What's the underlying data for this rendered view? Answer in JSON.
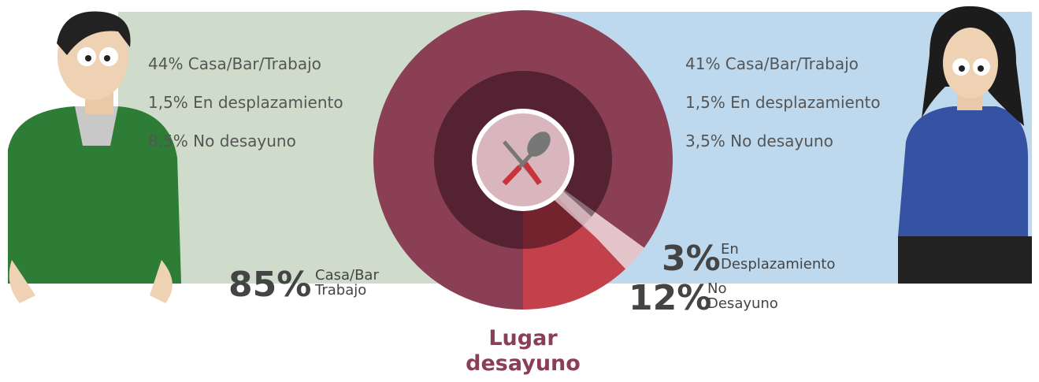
{
  "chart_data": {
    "type": "pie",
    "title": "Lugar\ndesayuno",
    "categories": [
      "Casa/Bar\nTrabajo",
      "En\nDesplazamiento",
      "No\nDesayuno"
    ],
    "values": [
      85,
      3,
      12
    ],
    "value_labels": [
      "85%",
      "3%",
      "12%"
    ],
    "colors": [
      "#8b3f55",
      "#e4c3ca",
      "#c2414a"
    ],
    "annotations": {
      "men": [
        "44% Casa/Bar/Trabajo",
        "1,5% En desplazamiento",
        "8,5% No desayuno"
      ],
      "women": [
        "41% Casa/Bar/Trabajo",
        "1,5% En desplazamiento",
        "3,5% No desayuno"
      ]
    }
  }
}
